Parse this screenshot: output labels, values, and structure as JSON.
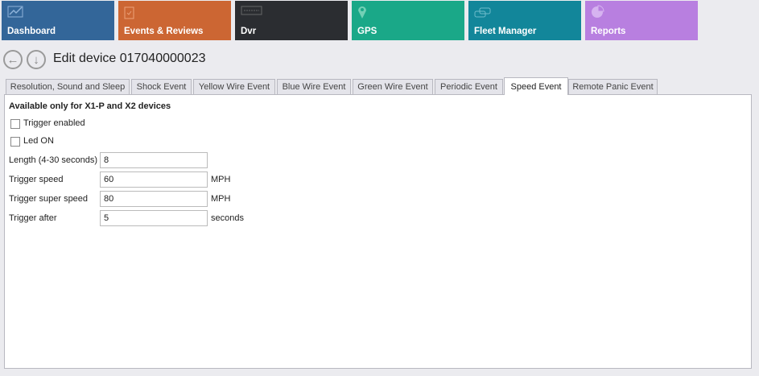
{
  "topnav": [
    {
      "label": "Dashboard",
      "icon": "chart-line-icon",
      "color": "#336699"
    },
    {
      "label": "Events & Reviews",
      "icon": "clipboard-check-icon",
      "color": "#cc6633"
    },
    {
      "label": "Dvr",
      "icon": "dvr-icon",
      "color": "#2b2d31"
    },
    {
      "label": "GPS",
      "icon": "map-pin-icon",
      "color": "#1aa888"
    },
    {
      "label": "Fleet Manager",
      "icon": "cars-icon",
      "color": "#12869a"
    },
    {
      "label": "Reports",
      "icon": "pie-chart-icon",
      "color": "#b87fe0"
    }
  ],
  "header": {
    "title": "Edit device 017040000023"
  },
  "tabs": [
    {
      "label": "Resolution, Sound and Sleep"
    },
    {
      "label": "Shock Event"
    },
    {
      "label": "Yellow Wire Event"
    },
    {
      "label": "Blue Wire Event"
    },
    {
      "label": "Green Wire Event"
    },
    {
      "label": "Periodic Event"
    },
    {
      "label": "Speed Event",
      "active": true
    },
    {
      "label": "Remote Panic Event"
    }
  ],
  "form": {
    "note": "Available only for X1-P and X2 devices",
    "trigger_enabled": {
      "label": "Trigger enabled",
      "checked": false
    },
    "led_on": {
      "label": "Led ON",
      "checked": false
    },
    "length": {
      "label": "Length (4-30 seconds)",
      "value": "8"
    },
    "trigger_speed": {
      "label": "Trigger speed",
      "value": "60",
      "unit": "MPH"
    },
    "trigger_super_speed": {
      "label": "Trigger super speed",
      "value": "80",
      "unit": "MPH"
    },
    "trigger_after": {
      "label": "Trigger after",
      "value": "5",
      "unit": "seconds"
    }
  }
}
